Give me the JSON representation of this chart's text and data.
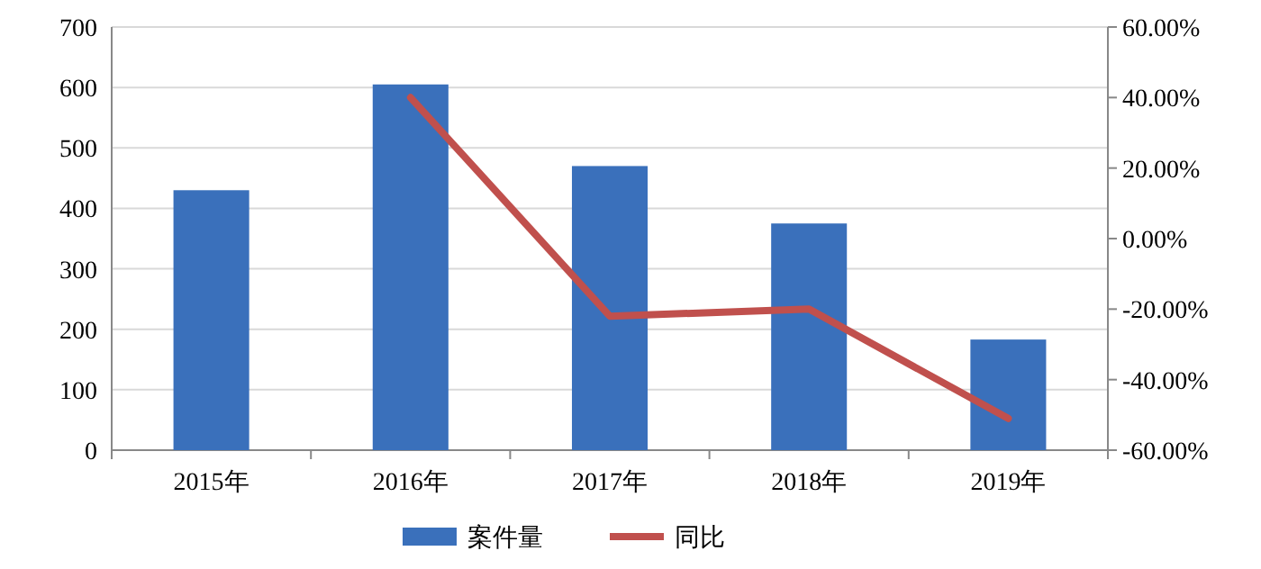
{
  "chart_data": {
    "type": "bar",
    "categories": [
      "2015年",
      "2016年",
      "2017年",
      "2018年",
      "2019年"
    ],
    "series": [
      {
        "name": "案件量",
        "color": "#3a70bb",
        "values": [
          430,
          605,
          470,
          375,
          183
        ]
      },
      {
        "name": "同比",
        "type": "line",
        "axis": "y2",
        "color": "#c0504d",
        "values": [
          null,
          40,
          -22,
          -20,
          -51
        ]
      }
    ],
    "ylim": [
      0,
      700
    ],
    "yticks": [
      0,
      100,
      200,
      300,
      400,
      500,
      600,
      700
    ],
    "y2lim": [
      -60,
      60
    ],
    "y2ticks": [
      {
        "value": -60,
        "label": "-60.00%"
      },
      {
        "value": -40,
        "label": "-40.00%"
      },
      {
        "value": -20,
        "label": "-20.00%"
      },
      {
        "value": 0,
        "label": "0.00%"
      },
      {
        "value": 20,
        "label": "20.00%"
      },
      {
        "value": 40,
        "label": "40.00%"
      },
      {
        "value": 60,
        "label": "60.00%"
      }
    ],
    "grid": "y",
    "legend": "bottom"
  }
}
